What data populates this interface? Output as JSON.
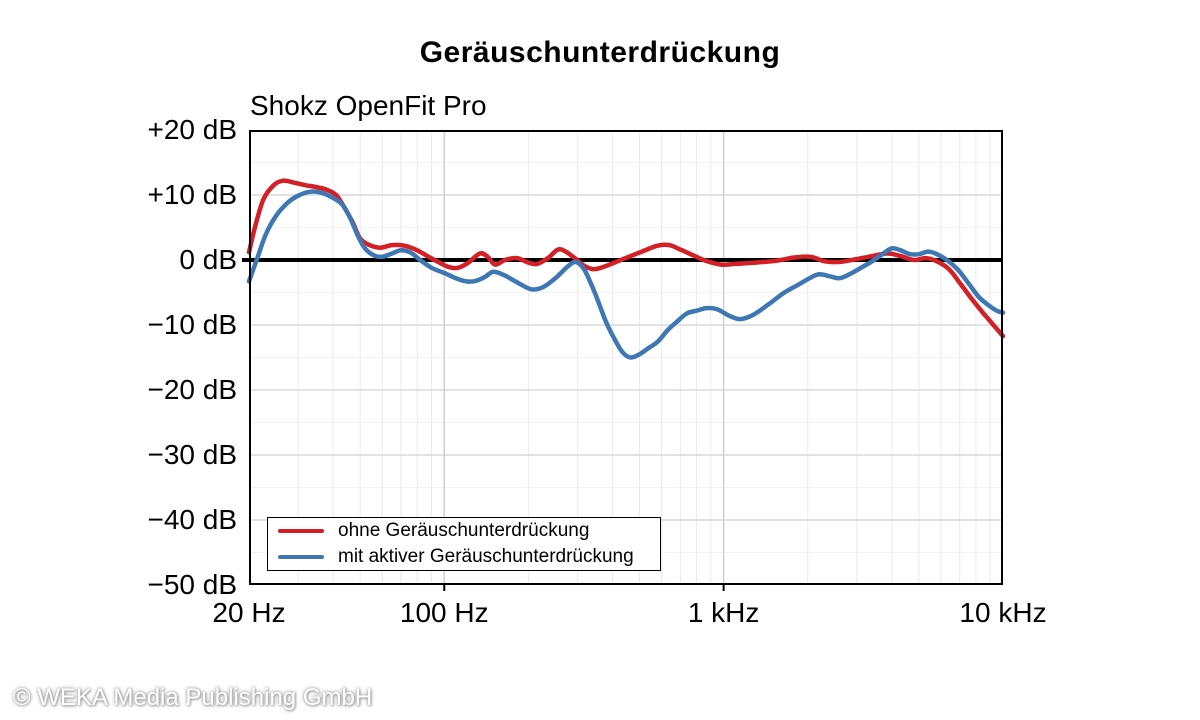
{
  "page": {
    "background": "#ffffff"
  },
  "watermark": {
    "text": "© WEKA Media Publishing GmbH"
  },
  "chart_data": {
    "type": "line",
    "title": "Geräuschunterdrückung",
    "subtitle": "Shokz OpenFit Pro",
    "grid": true,
    "frame_color": "#000000",
    "zero_line": {
      "value_db": 0,
      "color": "#000000"
    },
    "x_axis": {
      "scale": "log",
      "unit": "Hz",
      "min": 20,
      "max": 10000,
      "ticks": [
        {
          "value": 20,
          "label": "20 Hz"
        },
        {
          "value": 100,
          "label": "100 Hz"
        },
        {
          "value": 1000,
          "label": "1 kHz"
        },
        {
          "value": 10000,
          "label": "10 kHz"
        }
      ]
    },
    "y_axis": {
      "unit": "dB",
      "min": -50,
      "max": 20,
      "major_step": 10,
      "minor_step": 5,
      "ticks": [
        {
          "value": 20,
          "label": "+20 dB"
        },
        {
          "value": 10,
          "label": "+10 dB"
        },
        {
          "value": 0,
          "label": "0 dB"
        },
        {
          "value": -10,
          "label": "−10 dB"
        },
        {
          "value": -20,
          "label": "−20 dB"
        },
        {
          "value": -30,
          "label": "−30 dB"
        },
        {
          "value": -40,
          "label": "−40 dB"
        },
        {
          "value": -50,
          "label": "−50 dB"
        }
      ]
    },
    "legend": {
      "position": "bottom-left"
    },
    "series": [
      {
        "name": "ohne Geräuschunterdrückung",
        "color": "#d32027",
        "points": [
          [
            20,
            1.2
          ],
          [
            21,
            5.0
          ],
          [
            22.5,
            9.3
          ],
          [
            24.5,
            11.5
          ],
          [
            26.5,
            12.2
          ],
          [
            29,
            11.9
          ],
          [
            32,
            11.5
          ],
          [
            35,
            11.2
          ],
          [
            38,
            10.8
          ],
          [
            41,
            10.0
          ],
          [
            44,
            8.0
          ],
          [
            47,
            5.8
          ],
          [
            50,
            3.3
          ],
          [
            54,
            2.3
          ],
          [
            59,
            1.9
          ],
          [
            65,
            2.3
          ],
          [
            72,
            2.2
          ],
          [
            80,
            1.5
          ],
          [
            87,
            0.6
          ],
          [
            95,
            -0.3
          ],
          [
            104,
            -1.1
          ],
          [
            112,
            -1.2
          ],
          [
            122,
            -0.4
          ],
          [
            134,
            1.0
          ],
          [
            143,
            0.5
          ],
          [
            152,
            -0.7
          ],
          [
            165,
            0.0
          ],
          [
            182,
            0.3
          ],
          [
            200,
            -0.4
          ],
          [
            215,
            -0.6
          ],
          [
            235,
            0.3
          ],
          [
            255,
            1.6
          ],
          [
            272,
            1.3
          ],
          [
            295,
            0.2
          ],
          [
            320,
            -1.0
          ],
          [
            345,
            -1.4
          ],
          [
            380,
            -0.9
          ],
          [
            440,
            0.2
          ],
          [
            510,
            1.3
          ],
          [
            580,
            2.2
          ],
          [
            640,
            2.3
          ],
          [
            700,
            1.6
          ],
          [
            780,
            0.7
          ],
          [
            860,
            -0.1
          ],
          [
            980,
            -0.7
          ],
          [
            1100,
            -0.6
          ],
          [
            1300,
            -0.4
          ],
          [
            1550,
            -0.1
          ],
          [
            1800,
            0.4
          ],
          [
            2050,
            0.5
          ],
          [
            2300,
            -0.2
          ],
          [
            2600,
            -0.3
          ],
          [
            2950,
            0.1
          ],
          [
            3300,
            0.5
          ],
          [
            3850,
            1.0
          ],
          [
            4300,
            0.6
          ],
          [
            4800,
            0.0
          ],
          [
            5300,
            0.3
          ],
          [
            5800,
            -0.2
          ],
          [
            6400,
            -1.4
          ],
          [
            7000,
            -3.5
          ],
          [
            7700,
            -5.9
          ],
          [
            8400,
            -7.9
          ],
          [
            9200,
            -9.9
          ],
          [
            10000,
            -11.7
          ]
        ]
      },
      {
        "name": "mit aktiver Geräuschunterdrückung",
        "color": "#3f77b5",
        "points": [
          [
            20,
            -3.3
          ],
          [
            21.5,
            0.5
          ],
          [
            23,
            4.0
          ],
          [
            25,
            6.8
          ],
          [
            27.5,
            8.8
          ],
          [
            30,
            9.9
          ],
          [
            33,
            10.5
          ],
          [
            36,
            10.4
          ],
          [
            39,
            9.8
          ],
          [
            43,
            8.6
          ],
          [
            46,
            6.5
          ],
          [
            49,
            3.8
          ],
          [
            52,
            1.8
          ],
          [
            56,
            0.7
          ],
          [
            60,
            0.5
          ],
          [
            65,
            1.0
          ],
          [
            70,
            1.5
          ],
          [
            76,
            1.1
          ],
          [
            82,
            0.0
          ],
          [
            90,
            -1.2
          ],
          [
            100,
            -2.0
          ],
          [
            110,
            -2.8
          ],
          [
            120,
            -3.3
          ],
          [
            130,
            -3.2
          ],
          [
            140,
            -2.6
          ],
          [
            150,
            -1.8
          ],
          [
            165,
            -2.4
          ],
          [
            185,
            -3.6
          ],
          [
            205,
            -4.5
          ],
          [
            225,
            -4.2
          ],
          [
            250,
            -2.8
          ],
          [
            275,
            -1.1
          ],
          [
            295,
            -0.3
          ],
          [
            315,
            -1.3
          ],
          [
            335,
            -3.6
          ],
          [
            355,
            -6.3
          ],
          [
            380,
            -9.6
          ],
          [
            405,
            -12.0
          ],
          [
            435,
            -14.2
          ],
          [
            465,
            -15.0
          ],
          [
            500,
            -14.5
          ],
          [
            540,
            -13.5
          ],
          [
            580,
            -12.6
          ],
          [
            630,
            -10.8
          ],
          [
            680,
            -9.5
          ],
          [
            740,
            -8.2
          ],
          [
            800,
            -7.8
          ],
          [
            870,
            -7.4
          ],
          [
            950,
            -7.6
          ],
          [
            1050,
            -8.6
          ],
          [
            1150,
            -9.1
          ],
          [
            1280,
            -8.4
          ],
          [
            1450,
            -6.8
          ],
          [
            1650,
            -5.0
          ],
          [
            1850,
            -3.8
          ],
          [
            2050,
            -2.7
          ],
          [
            2200,
            -2.2
          ],
          [
            2400,
            -2.5
          ],
          [
            2600,
            -2.8
          ],
          [
            2850,
            -2.1
          ],
          [
            3100,
            -1.2
          ],
          [
            3400,
            -0.2
          ],
          [
            3700,
            0.9
          ],
          [
            4000,
            1.8
          ],
          [
            4300,
            1.5
          ],
          [
            4650,
            0.9
          ],
          [
            5000,
            0.9
          ],
          [
            5400,
            1.3
          ],
          [
            5800,
            0.9
          ],
          [
            6300,
            0.0
          ],
          [
            6900,
            -1.5
          ],
          [
            7500,
            -3.5
          ],
          [
            8200,
            -5.7
          ],
          [
            8900,
            -7.0
          ],
          [
            9500,
            -7.8
          ],
          [
            10000,
            -8.1
          ]
        ]
      }
    ]
  }
}
